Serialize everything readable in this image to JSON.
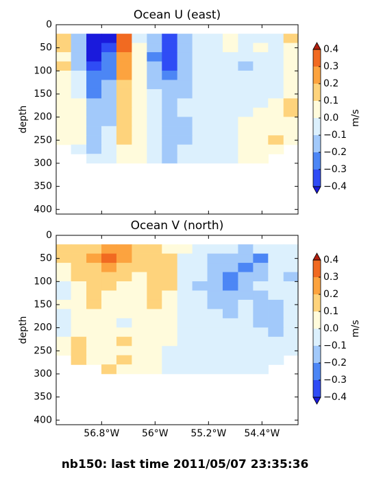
{
  "figure_title": "nb150: last time 2011/05/07 23:35:36",
  "chart_data": [
    {
      "type": "contourf",
      "title": "Ocean U (east)",
      "ylabel": "depth",
      "xlim": [
        -57.48,
        -53.86
      ],
      "ylim": [
        410,
        0
      ],
      "xticks": [
        -56.8,
        -56,
        -55.2,
        -54.4
      ],
      "show_xtick_labels": false,
      "yticks": [
        0,
        50,
        100,
        150,
        200,
        250,
        300,
        350,
        400
      ],
      "x": [
        -57.37,
        -57.14,
        -56.91,
        -56.69,
        -56.46,
        -56.23,
        -56.01,
        -55.78,
        -55.55,
        -55.33,
        -55.1,
        -54.87,
        -54.64,
        -54.42,
        -54.19,
        -53.96
      ],
      "y": [
        30,
        50,
        70,
        90,
        110,
        130,
        150,
        170,
        190,
        210,
        230,
        250,
        270,
        290
      ],
      "z": [
        [
          0.15,
          -0.15,
          -0.45,
          -0.45,
          0.35,
          -0.05,
          -0.15,
          -0.35,
          -0.15,
          -0.05,
          -0.05,
          0.05,
          -0.05,
          -0.05,
          -0.05,
          0.15
        ],
        [
          0.15,
          -0.15,
          -0.45,
          -0.35,
          0.35,
          0.05,
          -0.15,
          -0.35,
          -0.15,
          -0.05,
          -0.05,
          0.05,
          -0.05,
          0.05,
          -0.05,
          0.05
        ],
        [
          0.05,
          -0.15,
          -0.45,
          -0.25,
          0.25,
          0.05,
          -0.25,
          -0.35,
          -0.15,
          -0.05,
          -0.05,
          -0.05,
          -0.05,
          -0.05,
          -0.05,
          0.05
        ],
        [
          0.15,
          -0.15,
          -0.35,
          -0.25,
          0.25,
          0.05,
          -0.15,
          -0.35,
          -0.15,
          -0.05,
          -0.05,
          -0.05,
          -0.15,
          -0.05,
          -0.05,
          0.05
        ],
        [
          0.05,
          -0.05,
          -0.25,
          -0.25,
          0.25,
          0.05,
          -0.15,
          -0.25,
          -0.15,
          -0.05,
          -0.05,
          -0.05,
          -0.05,
          -0.05,
          -0.05,
          0.05
        ],
        [
          0.05,
          -0.05,
          -0.25,
          -0.15,
          0.15,
          0.05,
          -0.15,
          -0.15,
          -0.15,
          -0.05,
          -0.05,
          -0.05,
          -0.05,
          -0.05,
          -0.05,
          0.05
        ],
        [
          0.05,
          -0.05,
          -0.25,
          -0.15,
          0.15,
          0.05,
          -0.05,
          -0.15,
          -0.15,
          -0.05,
          -0.05,
          -0.05,
          -0.05,
          -0.05,
          -0.05,
          0.05
        ],
        [
          0.05,
          0.05,
          -0.15,
          -0.15,
          0.15,
          0.05,
          -0.05,
          -0.15,
          -0.05,
          -0.05,
          -0.05,
          -0.05,
          -0.05,
          -0.05,
          0.05,
          0.15
        ],
        [
          0.05,
          0.05,
          -0.15,
          -0.15,
          0.15,
          0.05,
          -0.05,
          -0.15,
          -0.05,
          -0.05,
          -0.05,
          -0.05,
          -0.05,
          0.05,
          0.05,
          0.15
        ],
        [
          0.05,
          0.05,
          -0.15,
          -0.15,
          0.15,
          0.05,
          -0.05,
          -0.15,
          -0.15,
          -0.05,
          -0.05,
          -0.05,
          0.05,
          0.05,
          0.05,
          0.05
        ],
        [
          0.05,
          0.05,
          -0.15,
          -0.05,
          0.15,
          0.05,
          -0.05,
          -0.15,
          -0.15,
          -0.05,
          -0.05,
          -0.05,
          0.05,
          0.05,
          0.05,
          0.05
        ],
        [
          0.05,
          0.05,
          -0.15,
          -0.05,
          0.15,
          0.05,
          -0.05,
          -0.15,
          -0.15,
          -0.05,
          -0.05,
          -0.05,
          0.05,
          0.05,
          0.15,
          0.05
        ],
        [
          null,
          -0.05,
          -0.15,
          -0.05,
          0.05,
          0.05,
          -0.05,
          -0.15,
          -0.05,
          -0.05,
          -0.05,
          -0.05,
          0.05,
          0.05,
          0.05,
          null
        ],
        [
          null,
          null,
          -0.05,
          -0.05,
          0.05,
          0.05,
          -0.05,
          -0.15,
          -0.05,
          -0.05,
          -0.05,
          -0.05,
          0.05,
          0.05,
          null,
          null
        ]
      ],
      "colorbar": {
        "label": "m/s",
        "levels": [
          -0.4,
          -0.3,
          -0.2,
          -0.1,
          0,
          0.1,
          0.2,
          0.3,
          0.4
        ],
        "colors": [
          "#2f4cf5",
          "#4c86f5",
          "#a2c9fa",
          "#dcf0fd",
          "#fffbdc",
          "#fed37c",
          "#fca33f",
          "#f16a21"
        ],
        "under_color": "#1a1adc",
        "over_color": "#b3200f",
        "ticks": [
          0.4,
          0.3,
          0.2,
          0.1,
          {
            "value": 0,
            "label": "0.0"
          },
          {
            "value": -0.1,
            "label": "−0.1"
          },
          {
            "value": -0.2,
            "label": "−0.2"
          },
          {
            "value": -0.3,
            "label": "−0.3"
          },
          {
            "value": -0.4,
            "label": "−0.4"
          }
        ]
      }
    },
    {
      "type": "contourf",
      "title": "Ocean V (north)",
      "ylabel": "depth",
      "xlim": [
        -57.48,
        -53.86
      ],
      "ylim": [
        410,
        0
      ],
      "xticks": [
        {
          "value": -56.8,
          "label": "56.8°W"
        },
        {
          "value": -56,
          "label": "56°W"
        },
        {
          "value": -55.2,
          "label": "55.2°W"
        },
        {
          "value": -54.4,
          "label": "54.4°W"
        }
      ],
      "show_xtick_labels": true,
      "yticks": [
        0,
        50,
        100,
        150,
        200,
        250,
        300,
        350,
        400
      ],
      "x": [
        -57.37,
        -57.14,
        -56.91,
        -56.69,
        -56.46,
        -56.23,
        -56.01,
        -55.78,
        -55.55,
        -55.33,
        -55.1,
        -54.87,
        -54.64,
        -54.42,
        -54.19,
        -53.96
      ],
      "y": [
        30,
        50,
        70,
        90,
        110,
        130,
        150,
        170,
        190,
        210,
        230,
        250,
        270,
        290
      ],
      "z": [
        [
          0.15,
          0.15,
          0.15,
          0.25,
          0.25,
          0.15,
          0.15,
          0.05,
          0.05,
          -0.05,
          -0.05,
          -0.05,
          -0.15,
          -0.05,
          -0.05,
          -0.05
        ],
        [
          0.15,
          0.15,
          0.25,
          0.35,
          0.25,
          0.15,
          0.15,
          0.15,
          -0.05,
          -0.05,
          -0.15,
          -0.15,
          -0.15,
          -0.25,
          -0.05,
          -0.05
        ],
        [
          0.05,
          0.15,
          0.15,
          0.25,
          0.15,
          0.15,
          0.15,
          0.15,
          -0.05,
          -0.05,
          -0.15,
          -0.15,
          -0.25,
          -0.15,
          -0.05,
          -0.05
        ],
        [
          0.05,
          0.15,
          0.15,
          0.15,
          0.15,
          0.05,
          0.15,
          0.15,
          -0.05,
          -0.05,
          -0.15,
          -0.25,
          -0.15,
          -0.15,
          -0.05,
          -0.15
        ],
        [
          -0.05,
          0.05,
          0.15,
          0.15,
          0.05,
          0.05,
          0.15,
          0.15,
          -0.05,
          -0.15,
          -0.15,
          -0.25,
          -0.15,
          -0.05,
          -0.05,
          -0.05
        ],
        [
          -0.05,
          0.05,
          0.15,
          0.05,
          0.05,
          0.05,
          0.15,
          0.05,
          -0.05,
          -0.05,
          -0.15,
          -0.15,
          -0.15,
          -0.15,
          -0.05,
          -0.05
        ],
        [
          0.05,
          0.05,
          0.15,
          0.05,
          0.05,
          0.05,
          0.15,
          0.05,
          -0.05,
          -0.05,
          -0.15,
          -0.15,
          -0.05,
          -0.15,
          -0.15,
          -0.05
        ],
        [
          -0.05,
          0.05,
          0.05,
          0.05,
          0.05,
          0.05,
          0.05,
          0.05,
          -0.05,
          -0.05,
          -0.05,
          -0.15,
          -0.05,
          -0.15,
          -0.15,
          -0.05
        ],
        [
          -0.05,
          0.05,
          0.05,
          0.05,
          -0.05,
          0.05,
          0.05,
          0.05,
          -0.05,
          -0.05,
          -0.05,
          -0.05,
          -0.05,
          -0.15,
          -0.15,
          -0.05
        ],
        [
          -0.05,
          0.05,
          0.05,
          0.05,
          0.05,
          0.05,
          0.05,
          0.05,
          -0.05,
          -0.05,
          -0.05,
          -0.05,
          -0.05,
          -0.05,
          -0.15,
          -0.05
        ],
        [
          0.05,
          0.15,
          0.05,
          0.05,
          0.15,
          0.05,
          0.05,
          0.05,
          -0.05,
          -0.05,
          -0.05,
          -0.05,
          -0.05,
          -0.05,
          -0.05,
          -0.05
        ],
        [
          0.05,
          0.15,
          0.05,
          0.05,
          0.05,
          0.05,
          0.05,
          -0.05,
          -0.05,
          -0.05,
          -0.05,
          -0.05,
          -0.05,
          -0.05,
          -0.05,
          -0.05
        ],
        [
          null,
          0.15,
          0.05,
          0.05,
          0.15,
          0.05,
          0.05,
          -0.05,
          -0.05,
          -0.05,
          -0.05,
          -0.05,
          -0.05,
          -0.05,
          -0.05,
          null
        ],
        [
          null,
          null,
          null,
          0.15,
          0.05,
          0.05,
          0.05,
          -0.05,
          -0.05,
          -0.05,
          -0.05,
          -0.05,
          -0.05,
          -0.05,
          null,
          null
        ]
      ],
      "colorbar": {
        "label": "m/s",
        "levels": [
          -0.4,
          -0.3,
          -0.2,
          -0.1,
          0,
          0.1,
          0.2,
          0.3,
          0.4
        ],
        "colors": [
          "#2f4cf5",
          "#4c86f5",
          "#a2c9fa",
          "#dcf0fd",
          "#fffbdc",
          "#fed37c",
          "#fca33f",
          "#f16a21"
        ],
        "under_color": "#1a1adc",
        "over_color": "#b3200f",
        "ticks": [
          0.4,
          0.3,
          0.2,
          0.1,
          {
            "value": 0,
            "label": "0.0"
          },
          {
            "value": -0.1,
            "label": "−0.1"
          },
          {
            "value": -0.2,
            "label": "−0.2"
          },
          {
            "value": -0.3,
            "label": "−0.3"
          },
          {
            "value": -0.4,
            "label": "−0.4"
          }
        ]
      }
    }
  ]
}
